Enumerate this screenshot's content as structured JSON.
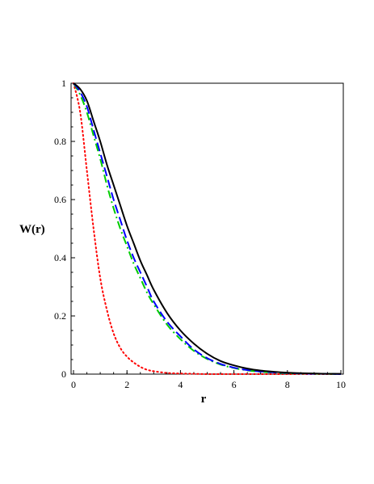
{
  "chart_data": {
    "type": "line",
    "xlabel": "r",
    "ylabel": "W(r)",
    "xlim": [
      0,
      10
    ],
    "ylim": [
      0,
      1
    ],
    "xticks": [
      "0",
      "2",
      "4",
      "6",
      "8",
      "10"
    ],
    "yticks": [
      "0",
      "0.2",
      "0.4",
      "0.6",
      "0.8",
      "1"
    ],
    "grid": false,
    "legend": "none",
    "x": [
      0,
      0.25,
      0.5,
      0.75,
      1,
      1.25,
      1.5,
      1.75,
      2,
      2.25,
      2.5,
      2.75,
      3,
      3.5,
      4,
      4.5,
      5,
      5.5,
      6,
      6.5,
      7,
      7.5,
      8,
      8.5,
      9,
      9.5,
      10
    ],
    "series": [
      {
        "color": "#000000",
        "style": "solid",
        "values": [
          1.0,
          0.98,
          0.94,
          0.87,
          0.8,
          0.72,
          0.65,
          0.58,
          0.51,
          0.45,
          0.39,
          0.34,
          0.29,
          0.21,
          0.15,
          0.105,
          0.07,
          0.045,
          0.03,
          0.019,
          0.012,
          0.008,
          0.005,
          0.003,
          0.002,
          0.001,
          0.001
        ]
      },
      {
        "color": "#0000ff",
        "style": "dashed",
        "values": [
          1.0,
          0.97,
          0.92,
          0.84,
          0.76,
          0.68,
          0.6,
          0.53,
          0.46,
          0.4,
          0.35,
          0.3,
          0.25,
          0.18,
          0.13,
          0.085,
          0.055,
          0.035,
          0.022,
          0.014,
          0.009,
          0.006,
          0.004,
          0.002,
          0.001,
          0.001,
          0.0
        ]
      },
      {
        "color": "#00cc00",
        "style": "dashdot",
        "values": [
          1.0,
          0.96,
          0.9,
          0.82,
          0.74,
          0.65,
          0.57,
          0.5,
          0.44,
          0.38,
          0.33,
          0.28,
          0.24,
          0.17,
          0.12,
          0.08,
          0.052,
          0.033,
          0.021,
          0.013,
          0.008,
          0.005,
          0.003,
          0.002,
          0.001,
          0.001,
          0.0
        ]
      },
      {
        "color": "#ff0000",
        "style": "dotted",
        "values": [
          1.0,
          0.9,
          0.7,
          0.5,
          0.33,
          0.22,
          0.14,
          0.09,
          0.06,
          0.04,
          0.025,
          0.015,
          0.01,
          0.004,
          0.002,
          0.001,
          0.0,
          0.0,
          0.0,
          0.0,
          0.0,
          0.0,
          0.0,
          0.0,
          0.0,
          0.0,
          0.0
        ]
      }
    ]
  }
}
